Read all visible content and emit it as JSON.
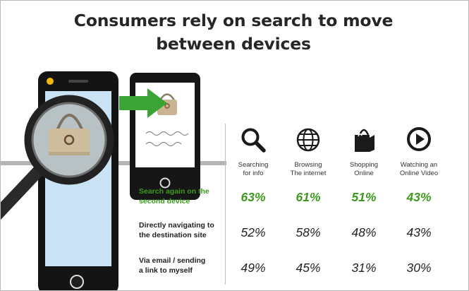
{
  "title_lines": [
    "Consumers rely on search to move",
    "between devices"
  ],
  "colors": {
    "highlight": "#3d9a1f",
    "text": "#222222",
    "arrow": "#3aa535",
    "screen": "#c9e3f4"
  },
  "illustration": {
    "icons": [
      "smartphone-icon",
      "tablet-icon",
      "magnifying-glass-icon",
      "shopping-bag-icon",
      "green-arrow-icon"
    ],
    "tablet_scribble": [
      "wavy fever evere",
      "esaun suiel eeaur"
    ]
  },
  "chart_data": {
    "type": "table",
    "categories": [
      {
        "lines": [
          "Searching",
          "for info"
        ],
        "icon": "search-icon"
      },
      {
        "lines": [
          "Browsing",
          "The internet"
        ],
        "icon": "globe-icon"
      },
      {
        "lines": [
          "Shopping",
          "Online"
        ],
        "icon": "shopping-bag-icon"
      },
      {
        "lines": [
          "Watching an",
          "Online Video"
        ],
        "icon": "play-icon"
      }
    ],
    "series": [
      {
        "name_lines": [
          "Search again on the",
          "second device"
        ],
        "values": [
          63,
          61,
          51,
          43
        ],
        "labels": [
          "63%",
          "61%",
          "51%",
          "43%"
        ],
        "highlight": true
      },
      {
        "name_lines": [
          "Directly navigating to",
          "the destination site"
        ],
        "values": [
          52,
          58,
          48,
          43
        ],
        "labels": [
          "52%",
          "58%",
          "48%",
          "43%"
        ],
        "highlight": false
      },
      {
        "name_lines": [
          "Via email / sending",
          "a link to myself"
        ],
        "values": [
          49,
          45,
          31,
          30
        ],
        "labels": [
          "49%",
          "45%",
          "31%",
          "30%"
        ],
        "highlight": false
      }
    ],
    "unit": "%"
  }
}
